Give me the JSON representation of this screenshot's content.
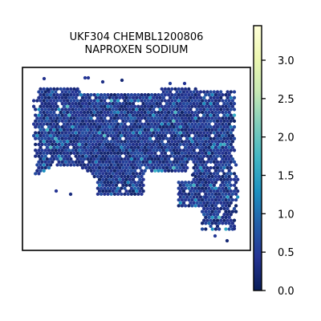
{
  "chart_data": {
    "type": "scatter",
    "plot_kind": "spatial hexbin heatmap (spot expression map)",
    "title": [
      "UKF304 CHEMBL1200806",
      "NAPROXEN SODIUM"
    ],
    "xlabel": "",
    "ylabel": "",
    "axes_ticks_visible": false,
    "grid": false,
    "colorbar": {
      "colormap": "YlGnBu",
      "vmin": 0.0,
      "vmax": 3.45,
      "ticks": [
        0.0,
        0.5,
        1.0,
        1.5,
        2.0,
        2.5,
        3.0
      ],
      "tick_labels": [
        "0.0",
        "0.5",
        "1.0",
        "1.5",
        "2.0",
        "2.5",
        "3.0"
      ],
      "colors": [
        "#081d58",
        "#253494",
        "#225ea8",
        "#1d91c0",
        "#41b6c4",
        "#7fcdbb",
        "#c7e9b4",
        "#edf8b1",
        "#ffffd9"
      ]
    },
    "series": [
      {
        "values_summary": {
          "typical_value": 0.4,
          "range_of_most_spots": [
            0.1,
            0.9
          ],
          "occasional_high_spots": [
            1.2,
            1.8
          ]
        }
      }
    ]
  }
}
